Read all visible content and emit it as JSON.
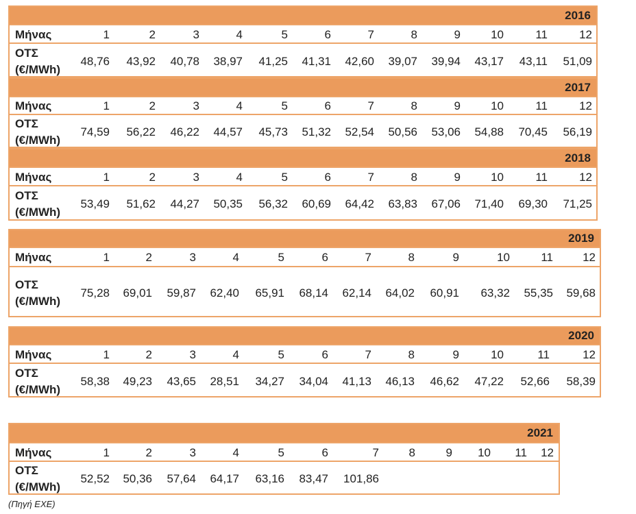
{
  "tables": [
    {
      "year": "2016",
      "month_label": "Μήνας",
      "months": [
        1,
        2,
        3,
        4,
        5,
        6,
        7,
        8,
        9,
        10,
        11,
        12
      ],
      "row_label": "ΟΤΣ (€/MWh)",
      "values": [
        "48,76",
        "43,92",
        "40,78",
        "38,97",
        "41,25",
        "41,31",
        "42,60",
        "39,07",
        "39,94",
        "43,17",
        "43,11",
        "51,09"
      ]
    },
    {
      "year": "2017",
      "month_label": "Μήνας",
      "months": [
        1,
        2,
        3,
        4,
        5,
        6,
        7,
        8,
        9,
        10,
        11,
        12
      ],
      "row_label": "ΟΤΣ (€/MWh)",
      "values": [
        "74,59",
        "56,22",
        "46,22",
        "44,57",
        "45,73",
        "51,32",
        "52,54",
        "50,56",
        "53,06",
        "54,88",
        "70,45",
        "56,19"
      ]
    },
    {
      "year": "2018",
      "month_label": "Μήνας",
      "months": [
        1,
        2,
        3,
        4,
        5,
        6,
        7,
        8,
        9,
        10,
        11,
        12
      ],
      "row_label": "ΟΤΣ (€/MWh)",
      "values": [
        "53,49",
        "51,62",
        "44,27",
        "50,35",
        "56,32",
        "60,69",
        "64,42",
        "63,83",
        "67,06",
        "71,40",
        "69,30",
        "71,25"
      ]
    },
    {
      "year": "2019",
      "month_label": "Μήνας",
      "months": [
        1,
        2,
        3,
        4,
        5,
        6,
        7,
        8,
        9,
        10,
        11,
        12
      ],
      "row_label": "ΟΤΣ (€/MWh)",
      "values": [
        "75,28",
        "69,01",
        "59,87",
        "62,40",
        "65,91",
        "68,14",
        "62,14",
        "64,02",
        "60,91",
        "63,32",
        "55,35",
        "59,68"
      ]
    },
    {
      "year": "2020",
      "month_label": "Μήνας",
      "months": [
        1,
        2,
        3,
        4,
        5,
        6,
        7,
        8,
        9,
        10,
        11,
        12
      ],
      "row_label": "ΟΤΣ (€/MWh)",
      "values": [
        "58,38",
        "49,23",
        "43,65",
        "28,51",
        "34,27",
        "34,04",
        "41,13",
        "46,13",
        "46,62",
        "47,22",
        "52,66",
        "58,39"
      ]
    },
    {
      "year": "2021",
      "month_label": "Μήνας",
      "months": [
        1,
        2,
        3,
        4,
        5,
        6,
        7,
        8,
        9,
        10,
        11,
        12
      ],
      "row_label": "ΟΤΣ (€/MWh)",
      "values": [
        "52,52",
        "50,36",
        "57,64",
        "64,17",
        "63,16",
        "83,47",
        "101,86"
      ]
    }
  ],
  "source": "(Πηγή ΕΧΕ)"
}
